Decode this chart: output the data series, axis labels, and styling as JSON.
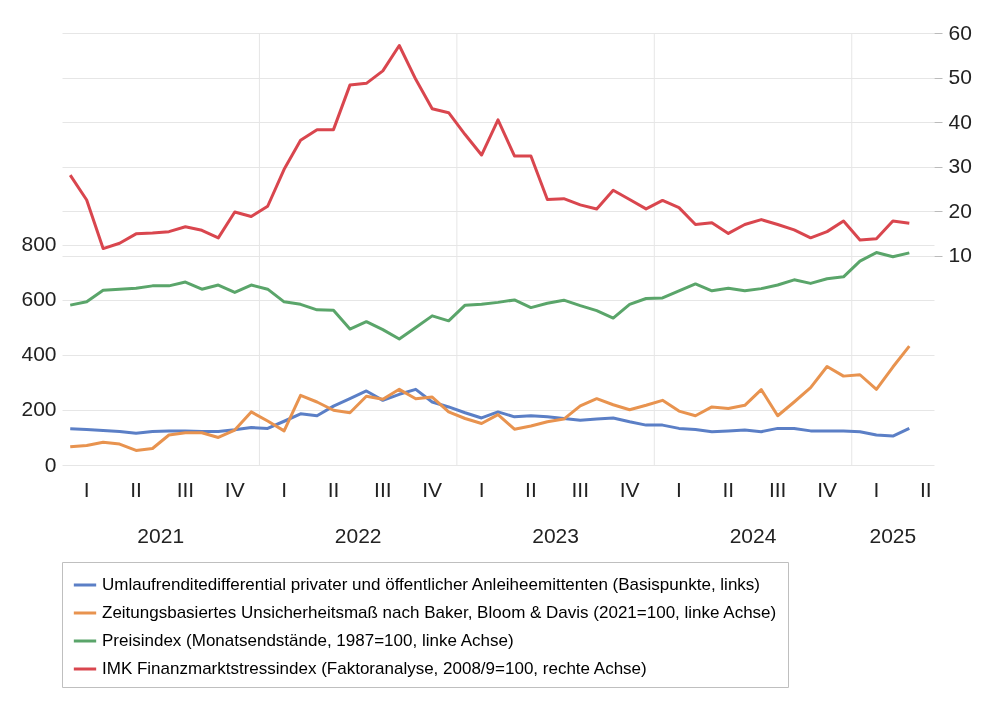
{
  "chart_data": {
    "type": "line",
    "categories": [
      null,
      "I",
      null,
      null,
      "II",
      null,
      null,
      "III",
      null,
      null,
      "IV",
      null,
      null,
      "I",
      null,
      null,
      "II",
      null,
      null,
      "III",
      null,
      null,
      "IV",
      null,
      null,
      "I",
      null,
      null,
      "II",
      null,
      null,
      "III",
      null,
      null,
      "IV",
      null,
      null,
      "I",
      null,
      null,
      "II",
      null,
      null,
      "III",
      null,
      null,
      "IV",
      null,
      null,
      "I",
      null,
      null,
      "II"
    ],
    "ylim": [
      0,
      1570
    ],
    "yticks": [
      0,
      200,
      400,
      600,
      800
    ],
    "y2lim": [
      -37,
      60
    ],
    "y2ticks": [
      10,
      20,
      30,
      40,
      50,
      60
    ],
    "grid": true,
    "legend": "bottom",
    "annotations": [
      "2021",
      "2022",
      "2023",
      "2024",
      "2025"
    ],
    "series": [
      {
        "name": "Umlaufrenditedifferential privater und öffentlicher Anleiheemittenten (Basispunkte, links)",
        "color": "#5b7fc6",
        "values": [
          132,
          129,
          125,
          122,
          115,
          122,
          124,
          124,
          122,
          122,
          128,
          136,
          133,
          159,
          186,
          179,
          214,
          241,
          269,
          235,
          257,
          275,
          229,
          211,
          190,
          171,
          193,
          175,
          179,
          175,
          169,
          163,
          167,
          171,
          157,
          145,
          145,
          133,
          129,
          121,
          124,
          127,
          121,
          133,
          133,
          124,
          124,
          124,
          121,
          109,
          105,
          133,
          null
        ]
      },
      {
        "name": "Zeitungsbasiertes Unsicherheitsmaß nach Baker, Bloom & Davis (2021=100, linke Achse)",
        "color": "#e8934f",
        "values": [
          66,
          71,
          83,
          76,
          53,
          60,
          109,
          117,
          117,
          100,
          127,
          193,
          160,
          124,
          253,
          229,
          199,
          190,
          250,
          239,
          275,
          241,
          247,
          193,
          169,
          151,
          183,
          130,
          142,
          157,
          167,
          215,
          241,
          219,
          201,
          217,
          235,
          196,
          179,
          211,
          205,
          217,
          274,
          179,
          229,
          281,
          358,
          323,
          328,
          275,
          356,
          432,
          null
        ]
      },
      {
        "name": "Preisindex (Monatsendstände, 1987=100, linke Achse)",
        "color": "#5aa56a",
        "values": [
          581,
          593,
          635,
          639,
          642,
          651,
          651,
          665,
          639,
          654,
          627,
          654,
          639,
          593,
          584,
          564,
          562,
          494,
          521,
          492,
          458,
          500,
          542,
          524,
          581,
          584,
          591,
          600,
          572,
          588,
          599,
          579,
          561,
          534,
          584,
          605,
          607,
          633,
          658,
          633,
          642,
          633,
          641,
          654,
          673,
          660,
          677,
          684,
          741,
          772,
          757,
          771,
          null
        ]
      },
      {
        "name": "IMK Finanzmarktstressindex (Faktoranalyse, 2008/9=100, rechte Achse)",
        "color": "#d9464e",
        "axis": "y2",
        "values": [
          28.1,
          22.5,
          11.6,
          12.8,
          14.9,
          15.1,
          15.4,
          16.5,
          15.7,
          14.0,
          19.8,
          18.8,
          21.1,
          29.4,
          35.9,
          38.3,
          38.3,
          48.3,
          48.7,
          51.5,
          57.2,
          49.6,
          43.0,
          42.1,
          37.2,
          32.6,
          40.5,
          32.4,
          32.4,
          22.6,
          22.8,
          21.4,
          20.5,
          24.7,
          22.6,
          20.5,
          22.4,
          20.8,
          17.0,
          17.4,
          15.0,
          17.0,
          18.1,
          17.0,
          15.8,
          14.0,
          15.4,
          17.8,
          13.5,
          13.8,
          17.8,
          17.3,
          null
        ]
      }
    ]
  }
}
